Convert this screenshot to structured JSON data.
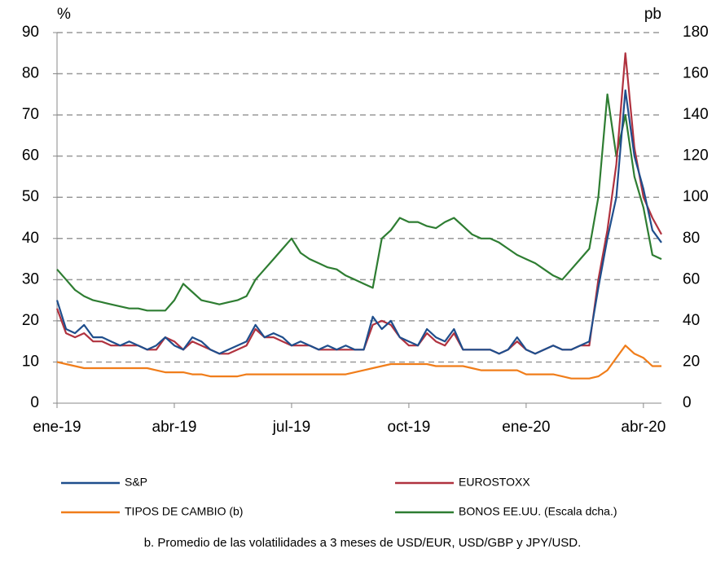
{
  "chart_data": {
    "type": "line",
    "ylabel": "%",
    "y2label": "pb",
    "categories": [
      "ene-19",
      null,
      null,
      null,
      null,
      null,
      null,
      null,
      null,
      null,
      null,
      null,
      null,
      "abr-19",
      null,
      null,
      null,
      null,
      null,
      null,
      null,
      null,
      null,
      null,
      null,
      null,
      "jul-19",
      null,
      null,
      null,
      null,
      null,
      null,
      null,
      null,
      null,
      null,
      null,
      null,
      "oct-19",
      null,
      null,
      null,
      null,
      null,
      null,
      null,
      null,
      null,
      null,
      null,
      null,
      "ene-20",
      null,
      null,
      null,
      null,
      null,
      null,
      null,
      null,
      null,
      null,
      null,
      null,
      "abr-20",
      null,
      null
    ],
    "series": [
      {
        "name": "S&P",
        "color": "#1f4e8c",
        "values": [
          25,
          18,
          17,
          19,
          16,
          16,
          15,
          14,
          15,
          14,
          13,
          14,
          16,
          14,
          13,
          16,
          15,
          13,
          12,
          13,
          14,
          15,
          19,
          16,
          17,
          16,
          14,
          15,
          14,
          13,
          14,
          13,
          14,
          13,
          13,
          21,
          18,
          20,
          16,
          15,
          14,
          18,
          16,
          15,
          18,
          13,
          13,
          13,
          13,
          12,
          13,
          16,
          13,
          12,
          13,
          14,
          13,
          13,
          14,
          15,
          28,
          40,
          50,
          76,
          60,
          52,
          42,
          39
        ]
      },
      {
        "name": "EUROSTOXX",
        "color": "#b0323f",
        "values": [
          23,
          17,
          16,
          17,
          15,
          15,
          14,
          14,
          14,
          14,
          13,
          13,
          16,
          15,
          13,
          15,
          14,
          13,
          12,
          12,
          13,
          14,
          18,
          16,
          16,
          15,
          14,
          14,
          14,
          13,
          13,
          13,
          13,
          13,
          13,
          19,
          20,
          19,
          16,
          14,
          14,
          17,
          15,
          14,
          17,
          13,
          13,
          13,
          13,
          12,
          13,
          15,
          13,
          12,
          13,
          14,
          13,
          13,
          14,
          14,
          30,
          42,
          58,
          85,
          62,
          50,
          45,
          41
        ]
      },
      {
        "name": "TIPOS DE CAMBIO (b)",
        "color": "#f07d1a",
        "values": [
          10,
          9.5,
          9,
          8.5,
          8.5,
          8.5,
          8.5,
          8.5,
          8.5,
          8.5,
          8.5,
          8,
          7.5,
          7.5,
          7.5,
          7,
          7,
          6.5,
          6.5,
          6.5,
          6.5,
          7,
          7,
          7,
          7,
          7,
          7,
          7,
          7,
          7,
          7,
          7,
          7,
          7.5,
          8,
          8.5,
          9,
          9.5,
          9.5,
          9.5,
          9.5,
          9.5,
          9,
          9,
          9,
          9,
          8.5,
          8,
          8,
          8,
          8,
          8,
          7,
          7,
          7,
          7,
          6.5,
          6,
          6,
          6,
          6.5,
          8,
          11,
          14,
          12,
          11,
          9,
          9
        ]
      },
      {
        "name": "BONOS EE.UU. (Escala dcha.)",
        "color": "#2e7d32",
        "axis": "y2",
        "values": [
          65,
          60,
          55,
          52,
          50,
          49,
          48,
          47,
          46,
          46,
          45,
          45,
          45,
          50,
          58,
          54,
          50,
          49,
          48,
          49,
          50,
          52,
          60,
          65,
          70,
          75,
          80,
          73,
          70,
          68,
          66,
          65,
          62,
          60,
          58,
          56,
          80,
          84,
          90,
          88,
          88,
          86,
          85,
          88,
          90,
          86,
          82,
          80,
          80,
          78,
          75,
          72,
          70,
          68,
          65,
          62,
          60,
          65,
          70,
          75,
          100,
          150,
          120,
          140,
          110,
          95,
          72,
          70
        ]
      }
    ],
    "ylim": [
      0,
      90
    ],
    "yticks": [
      0,
      10,
      20,
      30,
      40,
      50,
      60,
      70,
      80,
      90
    ],
    "y2lim": [
      0,
      180
    ],
    "y2ticks": [
      0,
      20,
      40,
      60,
      80,
      100,
      120,
      140,
      160,
      180
    ],
    "grid": true,
    "note": "b. Promedio de las volatilidades a 3 meses de USD/EUR, USD/GBP y JPY/USD."
  }
}
